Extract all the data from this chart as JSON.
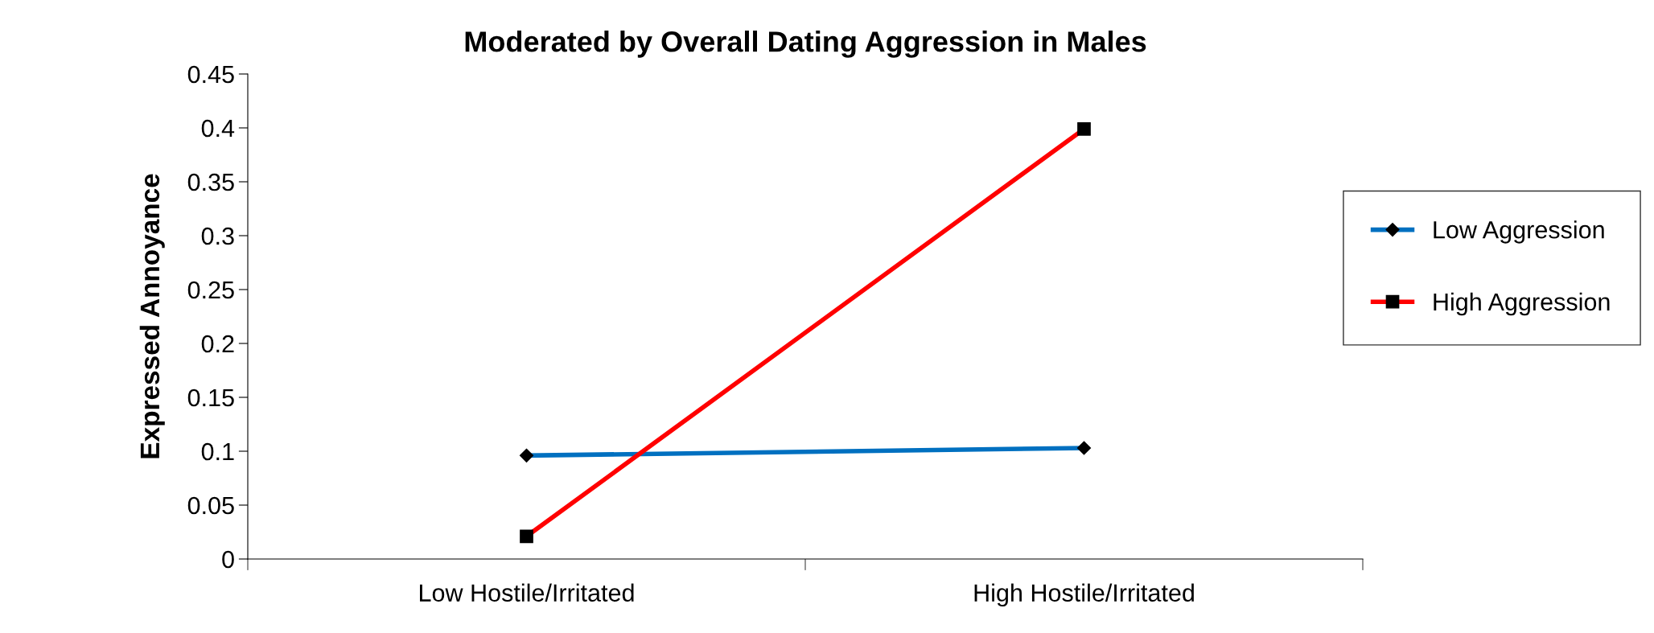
{
  "chart_data": {
    "type": "line",
    "title": "Moderated by Overall Dating Aggression in Males",
    "ylabel": "Expressed Annoyance",
    "categories": [
      "Low Hostile/Irritated",
      "High Hostile/Irritated"
    ],
    "series": [
      {
        "name": "Low Aggression",
        "color": "#0070c0",
        "values": [
          0.096,
          0.103
        ],
        "marker": "diamond"
      },
      {
        "name": "High Aggression",
        "color": "#ff0000",
        "values": [
          0.021,
          0.399
        ],
        "marker": "square"
      }
    ],
    "ylim": [
      0,
      0.45
    ],
    "yticks": [
      0,
      0.05,
      0.1,
      0.15,
      0.2,
      0.25,
      0.3,
      0.35,
      0.4,
      0.45
    ],
    "grid": false,
    "legend": "right",
    "line_style": "solid"
  }
}
